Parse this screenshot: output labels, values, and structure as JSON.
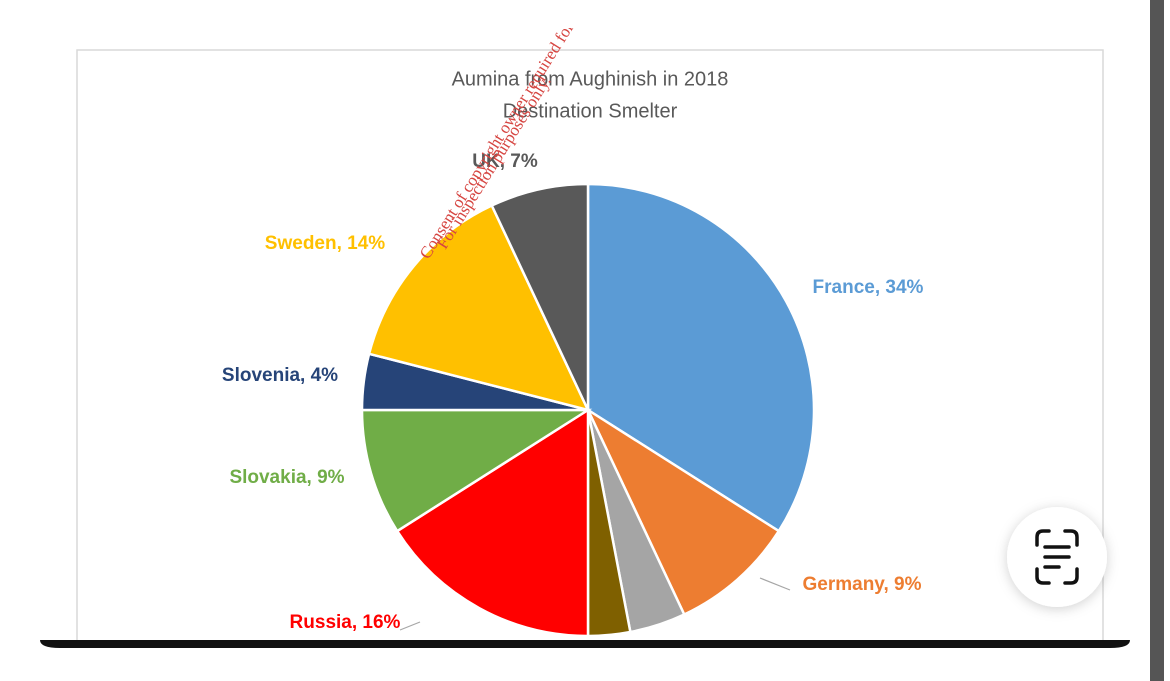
{
  "chart_data": {
    "type": "pie",
    "title": "Aumina from Aughinish in 2018",
    "subtitle": "Destination Smelter",
    "annotations": [
      "For inspection purposes only.",
      "Consent of copyright owner required for any other use."
    ],
    "categories": [
      "France",
      "Germany",
      null,
      null,
      "Russia",
      "Slovakia",
      "Slovenia",
      "Sweden",
      "UK"
    ],
    "values": [
      34,
      9,
      4,
      3,
      16,
      9,
      4,
      14,
      7
    ],
    "value_labels": [
      "France, 34%",
      "Germany, 9%",
      null,
      null,
      "Russia, 16%",
      "Slovakia, 9%",
      "Slovenia, 4%",
      "Sweden, 14%",
      "UK, 7%"
    ],
    "colors": [
      "#5b9bd5",
      "#ed7d31",
      "#a5a5a5",
      "#7f6000",
      "#ff0000",
      "#70ad47",
      "#264478",
      "#ffc000",
      "#595959"
    ]
  }
}
